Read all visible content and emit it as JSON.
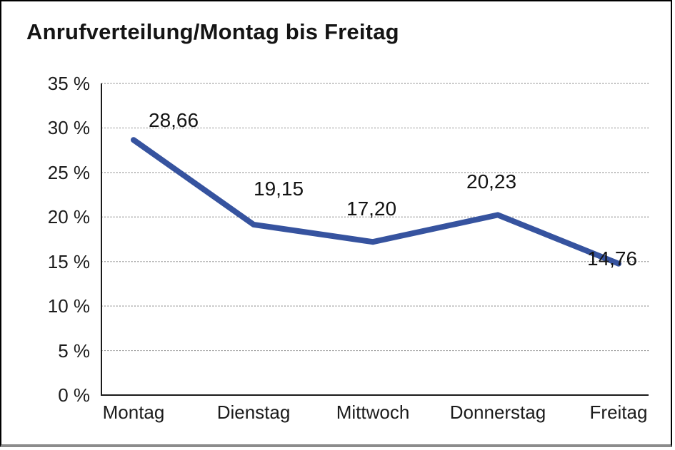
{
  "chart_data": {
    "type": "line",
    "title": "Anrufverteilung/Montag bis Freitag",
    "categories": [
      "Montag",
      "Dienstag",
      "Mittwoch",
      "Donnerstag",
      "Freitag"
    ],
    "values": [
      28.66,
      19.15,
      17.2,
      20.23,
      14.76
    ],
    "value_labels": [
      "28,66",
      "19,15",
      "17,20",
      "20,23",
      "14,76"
    ],
    "xlabel": "",
    "ylabel": "",
    "ylim": [
      0,
      35
    ],
    "ytick_step": 5,
    "ytick_labels": [
      "0 %",
      "5 %",
      "10 %",
      "15 %",
      "20 %",
      "25 %",
      "30 %",
      "35 %"
    ],
    "grid": "horizontal-dotted",
    "legend": "none",
    "colors": {
      "line": "#36539F",
      "axis": "#1a1a1a",
      "gridline": "#7a7a7a",
      "text": "#1c1c1c"
    }
  }
}
